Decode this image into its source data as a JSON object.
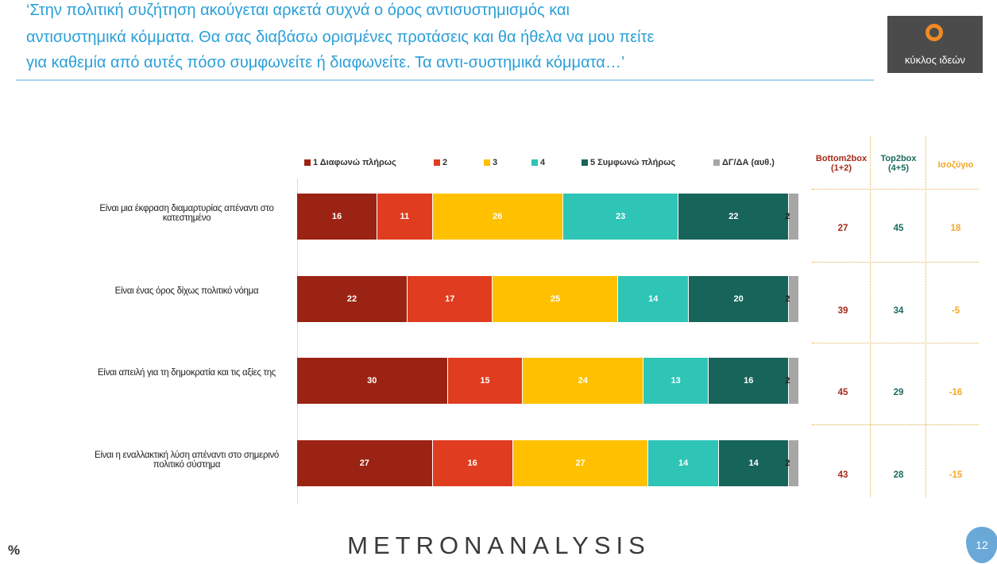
{
  "header": {
    "title_lines": [
      "‘Στην πολιτική συζήτηση ακούγεται αρκετά συχνά ο όρος αντισυστημισμός και",
      "αντισυστημικά κόμματα. Θα σας διαβάσω ορισμένες προτάσεις και θα ήθελα να μου πείτε",
      "για καθεμία από αυτές πόσο συμφωνείτε ή διαφωνείτε. Τα αντι-συστημικά κόμματα…’"
    ],
    "logo": "κύκλος ιδεών"
  },
  "chart_data": {
    "type": "bar",
    "orientation": "horizontal",
    "stacked": true,
    "legend": "top",
    "categories": [
      "Είναι μια έκφραση διαμαρτυρίας απέναντι στο κατεστημένο",
      "Είναι ένας όρος δίχως πολιτικό νόημα",
      "Είναι απειλή για τη δημοκρατία και τις αξίες της",
      "Είναι η εναλλακτική λύση απέναντι στο σημερινό πολιτικό σύστημα"
    ],
    "xlim": [
      0,
      100
    ],
    "series": [
      {
        "name": "1 Διαφωνώ πλήρως",
        "color": "#9b2314",
        "values": [
          16,
          22,
          30,
          27
        ]
      },
      {
        "name": "2",
        "color": "#e03c1f",
        "values": [
          11,
          17,
          15,
          16
        ]
      },
      {
        "name": "3",
        "color": "#ffc000",
        "values": [
          26,
          25,
          24,
          27
        ]
      },
      {
        "name": "4",
        "color": "#2ec4b6",
        "values": [
          23,
          14,
          13,
          14
        ]
      },
      {
        "name": "5 Συμφωνώ πλήρως",
        "color": "#17645a",
        "values": [
          22,
          20,
          16,
          14
        ]
      },
      {
        "name": "ΔΓ/ΔΑ (αυθ.)",
        "color": "#a6a6a6",
        "values": [
          2,
          2,
          2,
          2
        ]
      }
    ]
  },
  "summary_table": {
    "columns": [
      {
        "header": "Bottom2box (1+2)",
        "color": "#a52a1a",
        "values": [
          27,
          39,
          45,
          43
        ]
      },
      {
        "header": "Top2box (4+5)",
        "color": "#1a6b5f",
        "values": [
          45,
          34,
          29,
          28
        ]
      },
      {
        "header": "Ισοζύγιο",
        "color": "#f5a623",
        "values": [
          18,
          -5,
          -16,
          -15
        ]
      }
    ]
  },
  "footer": {
    "unit": "%",
    "brand": "METRONANALYSIS",
    "page": "12"
  }
}
